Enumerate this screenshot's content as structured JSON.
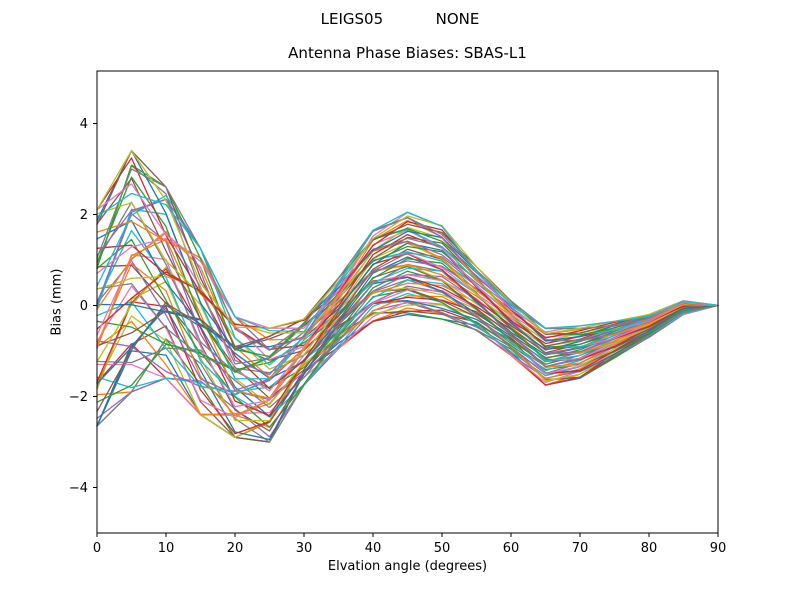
{
  "figure": {
    "suptitle": "LEIGS05           NONE",
    "title": "Antenna Phase Biases: SBAS-L1",
    "xlabel": "Elvation angle (degrees)",
    "ylabel": "Bias (mm)"
  },
  "chart_data": {
    "type": "line",
    "suptitle": "LEIGS05           NONE",
    "title": "Antenna Phase Biases: SBAS-L1",
    "xlabel": "Elvation angle (degrees)",
    "ylabel": "Bias (mm)",
    "xlim": [
      0,
      90
    ],
    "ylim": [
      -5,
      5.15
    ],
    "xticks": [
      0,
      10,
      20,
      30,
      40,
      50,
      60,
      70,
      80,
      90
    ],
    "yticks": [
      -4,
      -2,
      0,
      2,
      4
    ],
    "grid": false,
    "legend": "none",
    "n_series": 60,
    "x": [
      0,
      5,
      10,
      15,
      20,
      25,
      30,
      35,
      40,
      45,
      50,
      55,
      60,
      65,
      70,
      75,
      80,
      85,
      90
    ],
    "envelope_max": [
      2.1,
      3.4,
      2.6,
      1.25,
      -0.25,
      -0.5,
      -0.3,
      0.6,
      1.65,
      2.05,
      1.75,
      0.85,
      0.1,
      -0.5,
      -0.45,
      -0.35,
      -0.2,
      0.1,
      0.0
    ],
    "envelope_min": [
      -2.65,
      -1.9,
      -1.6,
      -2.4,
      -2.9,
      -3.0,
      -1.75,
      -0.95,
      -0.35,
      -0.2,
      -0.3,
      -0.55,
      -1.1,
      -1.75,
      -1.6,
      -1.15,
      -0.7,
      -0.2,
      0.0
    ],
    "jitter_amplitude": [
      0.9,
      0.95,
      0.85,
      0.7,
      0.5,
      0.4,
      0.28,
      0.2,
      0.15,
      0.12,
      0.12,
      0.12,
      0.12,
      0.1,
      0.08,
      0.06,
      0.04,
      0.03,
      0.0
    ],
    "jitter_phase_step": 2.399,
    "jitter_x_step": 1.25,
    "line_width": 1.3,
    "colors": [
      "#1f77b4",
      "#ff7f0e",
      "#2ca02c",
      "#d62728",
      "#9467bd",
      "#8c564b",
      "#e377c2",
      "#7f7f7f",
      "#bcbd22",
      "#17becf"
    ]
  }
}
